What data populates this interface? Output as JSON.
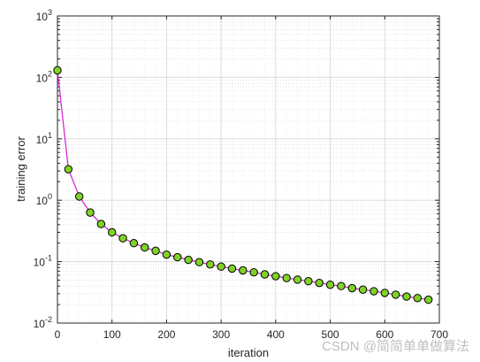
{
  "chart_data": {
    "type": "line",
    "xlabel": "iteration",
    "ylabel": "training error",
    "xlim": [
      0,
      700
    ],
    "ylim": [
      0.01,
      1000
    ],
    "yscale": "log",
    "grid": true,
    "x_ticks": [
      "0",
      "100",
      "200",
      "300",
      "400",
      "500",
      "600",
      "700"
    ],
    "y_ticks": [
      {
        "base": "10",
        "exp": "-2"
      },
      {
        "base": "10",
        "exp": "-1"
      },
      {
        "base": "10",
        "exp": "0"
      },
      {
        "base": "10",
        "exp": "1"
      },
      {
        "base": "10",
        "exp": "2"
      },
      {
        "base": "10",
        "exp": "3"
      }
    ],
    "line_color": "#d42ad4",
    "marker_fill": "#7fd327",
    "marker_edge": "#000000",
    "series": [
      {
        "x": [
          0,
          20,
          40,
          60,
          80,
          100,
          120,
          140,
          160,
          180,
          200,
          220,
          240,
          260,
          280,
          300,
          320,
          340,
          360,
          380,
          400,
          420,
          440,
          460,
          480,
          500,
          520,
          540,
          560,
          580,
          600,
          620,
          640,
          660,
          680
        ],
        "y": [
          130,
          3.2,
          1.15,
          0.63,
          0.41,
          0.3,
          0.24,
          0.2,
          0.17,
          0.15,
          0.13,
          0.118,
          0.107,
          0.098,
          0.09,
          0.083,
          0.077,
          0.072,
          0.067,
          0.062,
          0.058,
          0.054,
          0.051,
          0.048,
          0.045,
          0.042,
          0.04,
          0.037,
          0.035,
          0.033,
          0.031,
          0.029,
          0.027,
          0.0255,
          0.024
        ]
      }
    ]
  },
  "watermark": "CSDN @简简单单做算法"
}
